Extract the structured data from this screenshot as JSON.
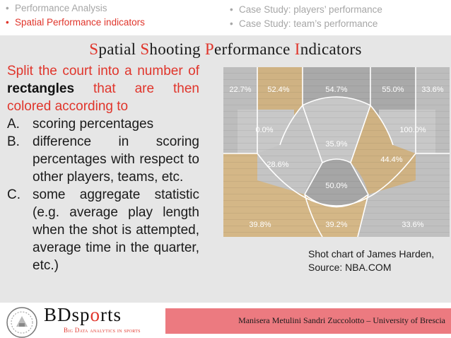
{
  "nav": {
    "left": [
      {
        "label": "Performance Analysis",
        "active": false
      },
      {
        "label": "Spatial Performance indicators",
        "active": true
      }
    ],
    "right": [
      {
        "label": "Case Study: players’ performance"
      },
      {
        "label": "Case Study: team’s performance"
      }
    ]
  },
  "slide": {
    "title_parts": [
      {
        "cap": "S",
        "rest": "patial "
      },
      {
        "cap": "S",
        "rest": "hooting "
      },
      {
        "cap": "P",
        "rest": "erformance "
      },
      {
        "cap": "I",
        "rest": "ndicators"
      }
    ],
    "intro_before": "Split the court into a number of ",
    "intro_bold": "rectangles",
    "intro_after": " that are then colored according to",
    "list": [
      {
        "mark": "A.",
        "text": "scoring percentages"
      },
      {
        "mark": "B.",
        "text": "difference in scoring percentages with respect to other players, teams, etc."
      },
      {
        "mark": "C.",
        "text": "some aggregate statistic (e.g. average play length when the shot is attempted, average time in the quarter, etc.)"
      }
    ],
    "caption_line1": "Shot chart of James Harden,",
    "caption_line2": "Source: NBA.COM"
  },
  "shot_chart": {
    "zones": [
      {
        "label": "22.7%",
        "color": "#bdbdbd"
      },
      {
        "label": "52.4%",
        "color": "#cfb283"
      },
      {
        "label": "54.7%",
        "color": "#a9a9a9"
      },
      {
        "label": "55.0%",
        "color": "#a9a9a9"
      },
      {
        "label": "33.6%",
        "color": "#bdbdbd"
      },
      {
        "label": "0.0%",
        "color": "#c8c8c8"
      },
      {
        "label": "100.0%",
        "color": "#c8c8c8"
      },
      {
        "label": "35.9%",
        "color": "#c7c7c7"
      },
      {
        "label": "28.6%",
        "color": "#c4c4c4"
      },
      {
        "label": "44.4%",
        "color": "#cfb283"
      },
      {
        "label": "50.0%",
        "color": "#a6a6a6"
      },
      {
        "label": "39.8%",
        "color": "#d4b787"
      },
      {
        "label": "39.2%",
        "color": "#d4b787"
      },
      {
        "label": "33.6%",
        "color": "#c0c0c0"
      }
    ]
  },
  "footer": {
    "text": "Manisera Metulini Sandri Zuccolotto – University of Brescia",
    "brand_a": "BDsp",
    "brand_b": "o",
    "brand_c": "rts",
    "tagline": "Big Data analytics in sports"
  },
  "colors": {
    "accent": "#e0352b",
    "panel": "#e6e6e6",
    "footer": "#ec7a80"
  }
}
